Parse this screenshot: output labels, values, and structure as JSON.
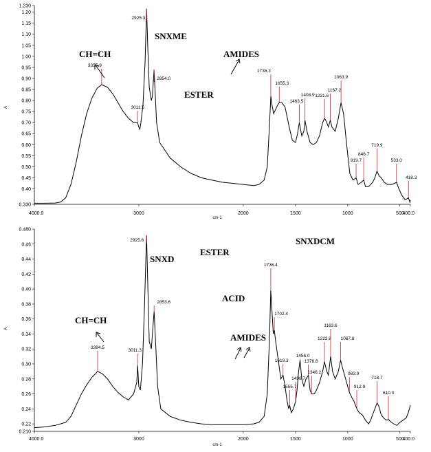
{
  "chart_data": [
    {
      "type": "line",
      "title": "SNXME",
      "xlabel": "cm-1",
      "ylabel": "A",
      "xlim": [
        4000,
        400
      ],
      "ylim": [
        0.33,
        1.23
      ],
      "x_ticks": [
        {
          "value": 4000,
          "label": "4000.0"
        },
        {
          "value": 3000,
          "label": "3000"
        },
        {
          "value": 2000,
          "label": "2000"
        },
        {
          "value": 1500,
          "label": "1500"
        },
        {
          "value": 1000,
          "label": "1000"
        },
        {
          "value": 500,
          "label": "500"
        },
        {
          "value": 400,
          "label": "400.0"
        }
      ],
      "y_ticks": [
        {
          "value": 0.33,
          "label": "0.330"
        },
        {
          "value": 0.4,
          "label": "0.40"
        },
        {
          "value": 0.45,
          "label": "0.45"
        },
        {
          "value": 0.5,
          "label": "0.50"
        },
        {
          "value": 0.55,
          "label": "0.55"
        },
        {
          "value": 0.6,
          "label": "0.60"
        },
        {
          "value": 0.65,
          "label": "0.65"
        },
        {
          "value": 0.7,
          "label": "0.70"
        },
        {
          "value": 0.75,
          "label": "0.75"
        },
        {
          "value": 0.8,
          "label": "0.80"
        },
        {
          "value": 0.85,
          "label": "0.85"
        },
        {
          "value": 0.9,
          "label": "0.90"
        },
        {
          "value": 0.95,
          "label": "0.95"
        },
        {
          "value": 1.0,
          "label": "1.00"
        },
        {
          "value": 1.05,
          "label": "1.05"
        },
        {
          "value": 1.1,
          "label": "1.10"
        },
        {
          "value": 1.15,
          "label": "1.15"
        },
        {
          "value": 1.2,
          "label": "1.20"
        },
        {
          "value": 1.23,
          "label": "1.230"
        }
      ],
      "spectrum": [
        [
          4000,
          0.335
        ],
        [
          3900,
          0.335
        ],
        [
          3800,
          0.336
        ],
        [
          3750,
          0.34
        ],
        [
          3700,
          0.36
        ],
        [
          3650,
          0.42
        ],
        [
          3600,
          0.52
        ],
        [
          3550,
          0.64
        ],
        [
          3500,
          0.74
        ],
        [
          3450,
          0.81
        ],
        [
          3400,
          0.855
        ],
        [
          3355.9,
          0.872
        ],
        [
          3300,
          0.86
        ],
        [
          3250,
          0.83
        ],
        [
          3200,
          0.79
        ],
        [
          3150,
          0.75
        ],
        [
          3100,
          0.72
        ],
        [
          3050,
          0.7
        ],
        [
          3011.5,
          0.7
        ],
        [
          3000,
          0.68
        ],
        [
          2990,
          0.67
        ],
        [
          2980,
          0.7
        ],
        [
          2960,
          0.78
        ],
        [
          2940,
          0.98
        ],
        [
          2925.3,
          1.215
        ],
        [
          2915,
          1.05
        ],
        [
          2900,
          0.86
        ],
        [
          2880,
          0.8
        ],
        [
          2870,
          0.82
        ],
        [
          2854,
          0.94
        ],
        [
          2845,
          0.85
        ],
        [
          2830,
          0.7
        ],
        [
          2800,
          0.61
        ],
        [
          2700,
          0.54
        ],
        [
          2600,
          0.5
        ],
        [
          2500,
          0.47
        ],
        [
          2400,
          0.45
        ],
        [
          2300,
          0.44
        ],
        [
          2200,
          0.43
        ],
        [
          2100,
          0.425
        ],
        [
          2000,
          0.42
        ],
        [
          1900,
          0.415
        ],
        [
          1850,
          0.42
        ],
        [
          1800,
          0.44
        ],
        [
          1770,
          0.5
        ],
        [
          1750,
          0.68
        ],
        [
          1736.3,
          0.82
        ],
        [
          1725,
          0.78
        ],
        [
          1710,
          0.74
        ],
        [
          1690,
          0.76
        ],
        [
          1670,
          0.78
        ],
        [
          1655.3,
          0.79
        ],
        [
          1630,
          0.79
        ],
        [
          1600,
          0.77
        ],
        [
          1560,
          0.68
        ],
        [
          1530,
          0.62
        ],
        [
          1500,
          0.61
        ],
        [
          1480,
          0.65
        ],
        [
          1463.5,
          0.7
        ],
        [
          1440,
          0.64
        ],
        [
          1420,
          0.66
        ],
        [
          1408.9,
          0.71
        ],
        [
          1390,
          0.66
        ],
        [
          1360,
          0.61
        ],
        [
          1330,
          0.6
        ],
        [
          1300,
          0.61
        ],
        [
          1270,
          0.64
        ],
        [
          1240,
          0.7
        ],
        [
          1221.6,
          0.72
        ],
        [
          1200,
          0.7
        ],
        [
          1185,
          0.68
        ],
        [
          1167.2,
          0.71
        ],
        [
          1150,
          0.68
        ],
        [
          1120,
          0.66
        ],
        [
          1090,
          0.72
        ],
        [
          1063.9,
          0.79
        ],
        [
          1040,
          0.74
        ],
        [
          1010,
          0.6
        ],
        [
          980,
          0.47
        ],
        [
          950,
          0.44
        ],
        [
          919.7,
          0.45
        ],
        [
          900,
          0.42
        ],
        [
          870,
          0.43
        ],
        [
          846.7,
          0.44
        ],
        [
          830,
          0.41
        ],
        [
          800,
          0.41
        ],
        [
          760,
          0.43
        ],
        [
          740,
          0.45
        ],
        [
          719.9,
          0.48
        ],
        [
          700,
          0.46
        ],
        [
          680,
          0.45
        ],
        [
          650,
          0.43
        ],
        [
          620,
          0.42
        ],
        [
          580,
          0.42
        ],
        [
          550,
          0.425
        ],
        [
          533,
          0.43
        ],
        [
          510,
          0.4
        ],
        [
          480,
          0.37
        ],
        [
          450,
          0.35
        ],
        [
          418.3,
          0.36
        ],
        [
          405,
          0.34
        ],
        [
          400,
          0.35
        ]
      ],
      "peaks": [
        {
          "x": 3355.9,
          "label": "3355.9"
        },
        {
          "x": 3011.5,
          "label": "3011.5"
        },
        {
          "x": 2925.3,
          "label": "2925.3"
        },
        {
          "x": 2854.0,
          "label": "2854.0"
        },
        {
          "x": 1736.3,
          "label": "1736.3"
        },
        {
          "x": 1655.3,
          "label": "1655.3"
        },
        {
          "x": 1463.5,
          "label": "1463.5"
        },
        {
          "x": 1408.9,
          "label": "1408.9"
        },
        {
          "x": 1221.6,
          "label": "1221.6"
        },
        {
          "x": 1167.2,
          "label": "1167.2"
        },
        {
          "x": 1063.9,
          "label": "1063.9"
        },
        {
          "x": 919.7,
          "label": "919.7"
        },
        {
          "x": 846.7,
          "label": "846.7"
        },
        {
          "x": 719.9,
          "label": "719.9"
        },
        {
          "x": 533.0,
          "label": "533.0"
        },
        {
          "x": 418.3,
          "label": "418.3"
        }
      ],
      "annotations": [
        "SNXME",
        "CH=CH",
        "ESTER",
        "AMIDES"
      ]
    },
    {
      "type": "line",
      "title": "SNXD",
      "xlabel": "cm-1",
      "ylabel": "A",
      "xlim": [
        4000,
        400
      ],
      "ylim": [
        0.21,
        0.48
      ],
      "x_ticks": [
        {
          "value": 4000,
          "label": "4000.0"
        },
        {
          "value": 3000,
          "label": "3000"
        },
        {
          "value": 2000,
          "label": "2000"
        },
        {
          "value": 1500,
          "label": "1500"
        },
        {
          "value": 1000,
          "label": "1000"
        },
        {
          "value": 500,
          "label": "500"
        },
        {
          "value": 400,
          "label": "400.0"
        }
      ],
      "y_ticks": [
        {
          "value": 0.21,
          "label": "0.210"
        },
        {
          "value": 0.22,
          "label": "0.22"
        },
        {
          "value": 0.24,
          "label": "0.24"
        },
        {
          "value": 0.26,
          "label": "0.26"
        },
        {
          "value": 0.28,
          "label": "0.28"
        },
        {
          "value": 0.3,
          "label": "0.30"
        },
        {
          "value": 0.32,
          "label": "0.32"
        },
        {
          "value": 0.34,
          "label": "0.34"
        },
        {
          "value": 0.36,
          "label": "0.36"
        },
        {
          "value": 0.38,
          "label": "0.38"
        },
        {
          "value": 0.4,
          "label": "0.40"
        },
        {
          "value": 0.42,
          "label": "0.42"
        },
        {
          "value": 0.44,
          "label": "0.44"
        },
        {
          "value": 0.46,
          "label": "0.46"
        },
        {
          "value": 0.48,
          "label": "0.480"
        }
      ],
      "spectrum": [
        [
          4000,
          0.215
        ],
        [
          3900,
          0.216
        ],
        [
          3800,
          0.218
        ],
        [
          3700,
          0.222
        ],
        [
          3650,
          0.23
        ],
        [
          3600,
          0.245
        ],
        [
          3550,
          0.26
        ],
        [
          3500,
          0.272
        ],
        [
          3450,
          0.282
        ],
        [
          3394.5,
          0.29
        ],
        [
          3350,
          0.287
        ],
        [
          3300,
          0.28
        ],
        [
          3250,
          0.27
        ],
        [
          3200,
          0.262
        ],
        [
          3150,
          0.256
        ],
        [
          3100,
          0.252
        ],
        [
          3050,
          0.26
        ],
        [
          3020,
          0.275
        ],
        [
          3011.3,
          0.298
        ],
        [
          3000,
          0.27
        ],
        [
          2985,
          0.265
        ],
        [
          2965,
          0.3
        ],
        [
          2945,
          0.38
        ],
        [
          2925.6,
          0.472
        ],
        [
          2915,
          0.41
        ],
        [
          2900,
          0.33
        ],
        [
          2880,
          0.32
        ],
        [
          2865,
          0.35
        ],
        [
          2853.6,
          0.37
        ],
        [
          2840,
          0.33
        ],
        [
          2820,
          0.27
        ],
        [
          2790,
          0.24
        ],
        [
          2700,
          0.23
        ],
        [
          2600,
          0.225
        ],
        [
          2500,
          0.222
        ],
        [
          2400,
          0.22
        ],
        [
          2300,
          0.219
        ],
        [
          2200,
          0.219
        ],
        [
          2100,
          0.219
        ],
        [
          2000,
          0.219
        ],
        [
          1900,
          0.22
        ],
        [
          1850,
          0.222
        ],
        [
          1800,
          0.23
        ],
        [
          1770,
          0.26
        ],
        [
          1750,
          0.33
        ],
        [
          1736.4,
          0.398
        ],
        [
          1725,
          0.37
        ],
        [
          1712,
          0.34
        ],
        [
          1702.4,
          0.345
        ],
        [
          1690,
          0.33
        ],
        [
          1660,
          0.3
        ],
        [
          1640,
          0.28
        ],
        [
          1619.3,
          0.285
        ],
        [
          1600,
          0.27
        ],
        [
          1580,
          0.25
        ],
        [
          1565,
          0.24
        ],
        [
          1555.7,
          0.245
        ],
        [
          1540,
          0.235
        ],
        [
          1520,
          0.24
        ],
        [
          1498.7,
          0.25
        ],
        [
          1485,
          0.265
        ],
        [
          1470,
          0.29
        ],
        [
          1456,
          0.305
        ],
        [
          1440,
          0.28
        ],
        [
          1420,
          0.27
        ],
        [
          1400,
          0.28
        ],
        [
          1376.8,
          0.285
        ],
        [
          1360,
          0.265
        ],
        [
          1346.2,
          0.26
        ],
        [
          1320,
          0.26
        ],
        [
          1300,
          0.265
        ],
        [
          1270,
          0.275
        ],
        [
          1240,
          0.29
        ],
        [
          1222.8,
          0.303
        ],
        [
          1200,
          0.29
        ],
        [
          1185,
          0.285
        ],
        [
          1163.6,
          0.31
        ],
        [
          1145,
          0.29
        ],
        [
          1120,
          0.28
        ],
        [
          1090,
          0.29
        ],
        [
          1067.8,
          0.305
        ],
        [
          1050,
          0.295
        ],
        [
          1020,
          0.28
        ],
        [
          1000,
          0.27
        ],
        [
          983.9,
          0.262
        ],
        [
          960,
          0.255
        ],
        [
          940,
          0.25
        ],
        [
          912.9,
          0.24
        ],
        [
          890,
          0.235
        ],
        [
          860,
          0.232
        ],
        [
          830,
          0.225
        ],
        [
          800,
          0.22
        ],
        [
          780,
          0.225
        ],
        [
          760,
          0.233
        ],
        [
          740,
          0.24
        ],
        [
          718.7,
          0.248
        ],
        [
          700,
          0.243
        ],
        [
          680,
          0.232
        ],
        [
          650,
          0.227
        ],
        [
          630,
          0.225
        ],
        [
          610,
          0.226
        ],
        [
          590,
          0.223
        ],
        [
          560,
          0.22
        ],
        [
          530,
          0.218
        ],
        [
          500,
          0.222
        ],
        [
          470,
          0.225
        ],
        [
          440,
          0.228
        ],
        [
          420,
          0.235
        ],
        [
          400,
          0.245
        ]
      ],
      "peaks": [
        {
          "x": 3394.5,
          "label": "3394.5"
        },
        {
          "x": 3011.3,
          "label": "3011.3"
        },
        {
          "x": 2925.6,
          "label": "2925.6"
        },
        {
          "x": 2853.6,
          "label": "2853.6"
        },
        {
          "x": 1736.4,
          "label": "1736.4"
        },
        {
          "x": 1702.4,
          "label": "1702.4"
        },
        {
          "x": 1619.3,
          "label": "1619.3"
        },
        {
          "x": 1555.7,
          "label": "1555.7"
        },
        {
          "x": 1498.7,
          "label": "1498.7"
        },
        {
          "x": 1456.0,
          "label": "1456.0"
        },
        {
          "x": 1376.8,
          "label": "1376.8"
        },
        {
          "x": 1346.2,
          "label": "1346.2"
        },
        {
          "x": 1222.8,
          "label": "1222.8"
        },
        {
          "x": 1163.6,
          "label": "1163.6"
        },
        {
          "x": 1067.8,
          "label": "1067.8"
        },
        {
          "x": 983.9,
          "label": "983.9"
        },
        {
          "x": 912.9,
          "label": "912.9"
        },
        {
          "x": 718.7,
          "label": "718.7"
        },
        {
          "x": 610.0,
          "label": "610.0"
        }
      ],
      "annotations": [
        "SNXD",
        "SNXDCM",
        "ESTER",
        "ACID",
        "CH=CH",
        "AMIDES"
      ]
    }
  ],
  "colors": {
    "spectrum": "#000000",
    "peak_marker": "#d0202a",
    "axis": "#000000"
  }
}
